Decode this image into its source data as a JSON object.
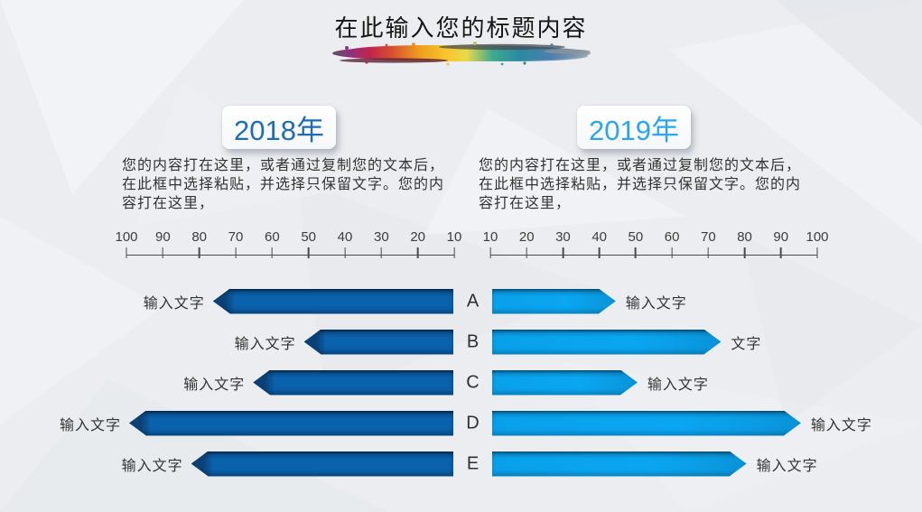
{
  "title": "在此输入您的标题内容",
  "decoration": {
    "splash_colors": [
      "#55565a",
      "#8d3182",
      "#c0244d",
      "#d9542e",
      "#ef9d1e",
      "#f6c62c",
      "#e8d94a",
      "#3fa98f",
      "#2b89a0",
      "#4b7fad",
      "#9fa8ae"
    ]
  },
  "left_panel": {
    "year": "2018年",
    "year_color": "#1e6cb4",
    "desc": "您的内容打在这里，或者通过复制您的文本后，在此框中选择粘贴，并选择只保留文字。您的内容打在这里，"
  },
  "right_panel": {
    "year": "2019年",
    "year_color": "#29a6ee",
    "desc": "您的内容打在这里，或者通过复制您的文本后，在此框中选择粘贴，并选择只保留文字。您的内容打在这里，"
  },
  "chart_data": {
    "type": "bar",
    "variant": "tornado-butterfly",
    "categories": [
      "A",
      "B",
      "C",
      "D",
      "E"
    ],
    "axis_range": [
      10,
      100
    ],
    "grid": false,
    "left_axis_ticks": [
      "100",
      "90",
      "80",
      "70",
      "60",
      "50",
      "40",
      "30",
      "20",
      "10"
    ],
    "right_axis_ticks": [
      "10",
      "20",
      "30",
      "40",
      "50",
      "60",
      "70",
      "80",
      "90",
      "100"
    ],
    "series": [
      {
        "name": "2018年",
        "side": "left",
        "color": "#0a61ac",
        "tip_color": "#0b4076",
        "values": [
          76,
          51,
          65,
          99,
          82
        ],
        "labels": [
          "输入文字",
          "输入文字",
          "输入文字",
          "输入文字",
          "输入文字"
        ]
      },
      {
        "name": "2019年",
        "side": "right",
        "color": "#0aa3ee",
        "values": [
          44,
          73,
          50,
          95,
          80
        ],
        "labels": [
          "输入文字",
          "文字",
          "输入文字",
          "输入文字",
          "输入文字"
        ]
      }
    ]
  }
}
